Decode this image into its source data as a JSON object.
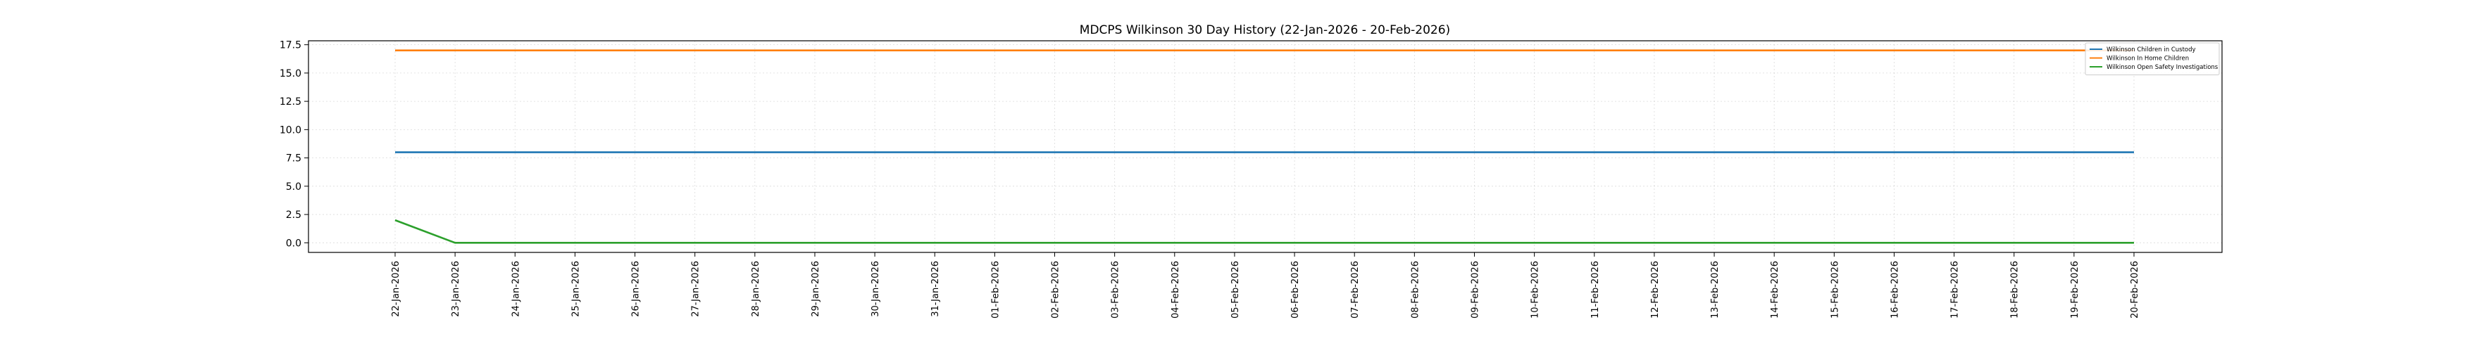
{
  "chart_data": {
    "type": "line",
    "title": "MDCPS Wilkinson 30 Day History (22-Jan-2026 - 20-Feb-2026)",
    "xlabel": "",
    "ylabel": "",
    "x": [
      "22-Jan-2026",
      "23-Jan-2026",
      "24-Jan-2026",
      "25-Jan-2026",
      "26-Jan-2026",
      "27-Jan-2026",
      "28-Jan-2026",
      "29-Jan-2026",
      "30-Jan-2026",
      "31-Jan-2026",
      "01-Feb-2026",
      "02-Feb-2026",
      "03-Feb-2026",
      "04-Feb-2026",
      "05-Feb-2026",
      "06-Feb-2026",
      "07-Feb-2026",
      "08-Feb-2026",
      "09-Feb-2026",
      "10-Feb-2026",
      "11-Feb-2026",
      "12-Feb-2026",
      "13-Feb-2026",
      "14-Feb-2026",
      "15-Feb-2026",
      "16-Feb-2026",
      "17-Feb-2026",
      "18-Feb-2026",
      "19-Feb-2026",
      "20-Feb-2026"
    ],
    "yticks": [
      "0.0",
      "2.5",
      "5.0",
      "7.5",
      "10.0",
      "12.5",
      "15.0",
      "17.5"
    ],
    "ylim": [
      -0.85,
      17.85
    ],
    "grid": true,
    "legend_position": "top-right",
    "series": [
      {
        "name": "Wilkinson Children in Custody",
        "color": "#1f77b4",
        "values": [
          8,
          8,
          8,
          8,
          8,
          8,
          8,
          8,
          8,
          8,
          8,
          8,
          8,
          8,
          8,
          8,
          8,
          8,
          8,
          8,
          8,
          8,
          8,
          8,
          8,
          8,
          8,
          8,
          8,
          8
        ]
      },
      {
        "name": "Wilkinson In Home Children",
        "color": "#ff7f0e",
        "values": [
          17,
          17,
          17,
          17,
          17,
          17,
          17,
          17,
          17,
          17,
          17,
          17,
          17,
          17,
          17,
          17,
          17,
          17,
          17,
          17,
          17,
          17,
          17,
          17,
          17,
          17,
          17,
          17,
          17,
          17
        ]
      },
      {
        "name": "Wilkinson Open Safety Investigations",
        "color": "#2ca02c",
        "values": [
          2,
          0,
          0,
          0,
          0,
          0,
          0,
          0,
          0,
          0,
          0,
          0,
          0,
          0,
          0,
          0,
          0,
          0,
          0,
          0,
          0,
          0,
          0,
          0,
          0,
          0,
          0,
          0,
          0,
          0
        ]
      }
    ]
  }
}
